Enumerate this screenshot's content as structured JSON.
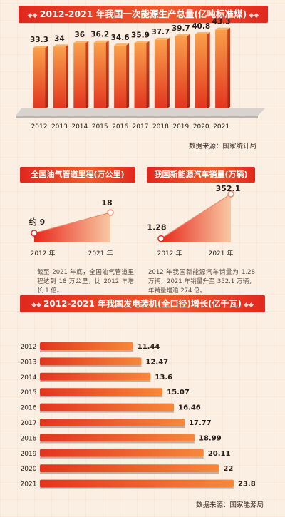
{
  "titles": {
    "energy": "2012-2021 年我国一次能源生产总量(亿吨标准煤)",
    "pipeline": "全国油气管道里程(万公里)",
    "nev": "我国新能源汽车销量(万辆)",
    "power": "2012-2021 年我国发电装机(全口径)增长(亿千瓦)"
  },
  "sources": {
    "energy": "数据来源：国家统计局",
    "power": "数据来源：国家能源局"
  },
  "notes": {
    "pipeline": "截至 2021 年底，全国油气管道里程达到 18 万公里，比 2012 年增长 1 倍。",
    "nev": "2012 年我国新能源汽车销量为 1.28 万辆，2021 年销量升至 352.1 万辆，年销量增逾 274 倍。"
  },
  "colors": {
    "accent_red": "#e0281e",
    "bar_orange": "#f26a2c",
    "background": "#fbeee3"
  },
  "chart_data": [
    {
      "type": "bar",
      "title": "2012-2021 年我国一次能源生产总量(亿吨标准煤)",
      "categories": [
        "2012",
        "2013",
        "2014",
        "2015",
        "2016",
        "2017",
        "2018",
        "2019",
        "2020",
        "2021"
      ],
      "values": [
        33.3,
        34,
        36,
        36.2,
        34.6,
        35.9,
        37.7,
        39.7,
        40.8,
        43.3
      ],
      "value_labels": [
        "33.3",
        "34",
        "36",
        "36.2",
        "34.6",
        "35.9",
        "37.7",
        "39.7",
        "40.8",
        "43.3"
      ],
      "xlabel": "",
      "ylabel": "",
      "ylim": [
        0,
        50
      ]
    },
    {
      "type": "area",
      "title": "全国油气管道里程(万公里)",
      "categories": [
        "2012 年",
        "2021 年"
      ],
      "values": [
        9,
        18
      ],
      "value_labels": [
        "约 9",
        "18"
      ],
      "ylim": [
        0,
        20
      ]
    },
    {
      "type": "area",
      "title": "我国新能源汽车销量(万辆)",
      "categories": [
        "2012 年",
        "2021 年"
      ],
      "values": [
        1.28,
        352.1
      ],
      "value_labels": [
        "1.28",
        "352.1"
      ],
      "ylim": [
        0,
        400
      ]
    },
    {
      "type": "bar",
      "orientation": "horizontal",
      "title": "2012-2021 年我国发电装机(全口径)增长(亿千瓦)",
      "categories": [
        "2012",
        "2013",
        "2014",
        "2015",
        "2016",
        "2017",
        "2018",
        "2019",
        "2020",
        "2021"
      ],
      "values": [
        11.44,
        12.47,
        13.6,
        15.07,
        16.46,
        17.77,
        18.99,
        20.11,
        22,
        23.8
      ],
      "value_labels": [
        "11.44",
        "12.47",
        "13.6",
        "15.07",
        "16.46",
        "17.77",
        "18.99",
        "20.11",
        "22",
        "23.8"
      ],
      "xlim": [
        0,
        25
      ]
    }
  ]
}
